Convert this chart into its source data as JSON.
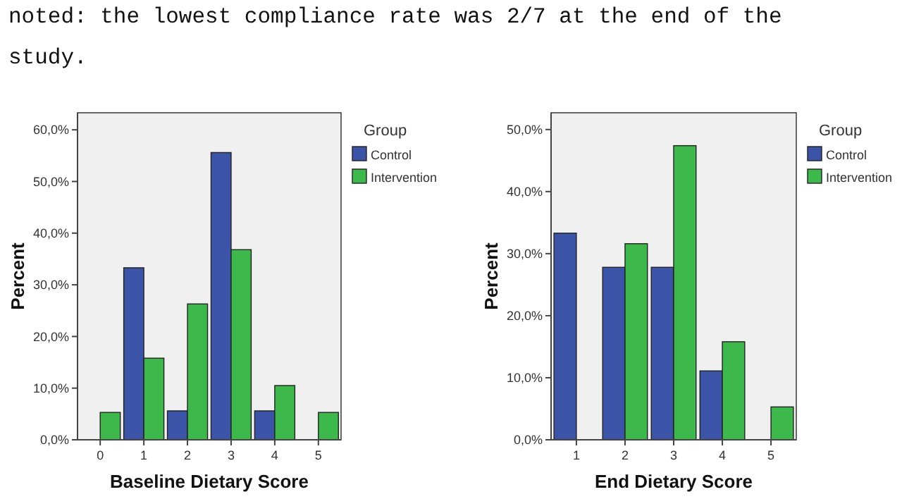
{
  "chart_data": [
    {
      "type": "bar",
      "annotations": [
        "noted: the lowest compliance rate was 2/7 at the end of the",
        "study."
      ],
      "xlabel": "Baseline Dietary Score",
      "ylabel": "Percent",
      "legend_title": "Group",
      "legend": "top right",
      "categories": [
        "0",
        "1",
        "2",
        "3",
        "4",
        "5"
      ],
      "series": [
        {
          "name": "Control",
          "color": "#3b54a8",
          "values": [
            0,
            33.3,
            5.6,
            55.6,
            5.6,
            0
          ]
        },
        {
          "name": "Intervention",
          "color": "#3cb94a",
          "values": [
            5.3,
            15.8,
            26.3,
            36.8,
            10.5,
            5.3
          ]
        }
      ],
      "ylim": [
        0,
        63.3
      ],
      "yticks": [
        {
          "value": 0,
          "label": "0,0%"
        },
        {
          "value": 10,
          "label": "10,0%"
        },
        {
          "value": 20,
          "label": "20,0%"
        },
        {
          "value": 30,
          "label": "30,0%"
        },
        {
          "value": 40,
          "label": "40,0%"
        },
        {
          "value": 50,
          "label": "50,0%"
        },
        {
          "value": 60,
          "label": "60,0%"
        }
      ]
    },
    {
      "type": "bar",
      "xlabel": "End Dietary Score",
      "ylabel": "Percent",
      "legend_title": "Group",
      "legend": "top right",
      "categories": [
        "1",
        "2",
        "3",
        "4",
        "5"
      ],
      "series": [
        {
          "name": "Control",
          "color": "#3b54a8",
          "values": [
            33.3,
            27.8,
            27.8,
            11.1,
            0
          ]
        },
        {
          "name": "Intervention",
          "color": "#3cb94a",
          "values": [
            0,
            31.6,
            47.4,
            15.8,
            5.3
          ]
        }
      ],
      "ylim": [
        0,
        52.7
      ],
      "yticks": [
        {
          "value": 0,
          "label": "0,0%"
        },
        {
          "value": 10,
          "label": "10,0%"
        },
        {
          "value": 20,
          "label": "20,0%"
        },
        {
          "value": 30,
          "label": "30,0%"
        },
        {
          "value": 40,
          "label": "40,0%"
        },
        {
          "value": 50,
          "label": "50,0%"
        }
      ]
    }
  ]
}
